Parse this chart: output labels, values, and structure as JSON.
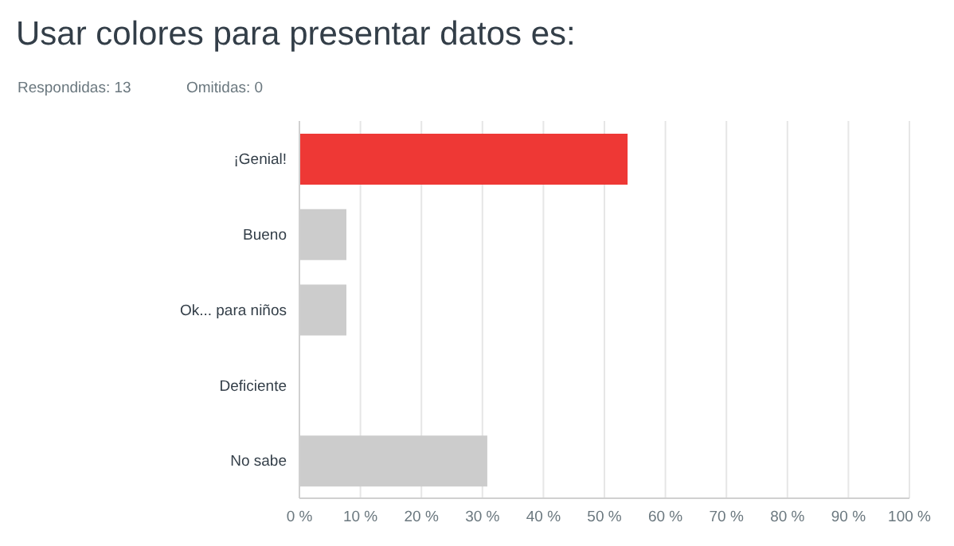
{
  "chart_data": {
    "type": "bar",
    "orientation": "horizontal",
    "title": "Usar colores para presentar datos es:",
    "annotations": [
      "Respondidas: 13",
      "Omitidas: 0"
    ],
    "categories": [
      "¡Genial!",
      "Bueno",
      "Ok... para niños",
      "Deficiente",
      "No sabe"
    ],
    "values": [
      53.8,
      7.7,
      7.7,
      0,
      30.8
    ],
    "colors": [
      "#ee3835",
      "#cccccc",
      "#cccccc",
      "#cccccc",
      "#cccccc"
    ],
    "xlim": [
      0,
      100
    ],
    "xticks": [
      {
        "value": 0,
        "label": "0 %"
      },
      {
        "value": 10,
        "label": "10 %"
      },
      {
        "value": 20,
        "label": "20 %"
      },
      {
        "value": 30,
        "label": "30 %"
      },
      {
        "value": 40,
        "label": "40 %"
      },
      {
        "value": 50,
        "label": "50 %"
      },
      {
        "value": 60,
        "label": "60 %"
      },
      {
        "value": 70,
        "label": "70 %"
      },
      {
        "value": 80,
        "label": "80 %"
      },
      {
        "value": 90,
        "label": "90 %"
      },
      {
        "value": 100,
        "label": "100 %"
      }
    ],
    "grid": "x"
  }
}
